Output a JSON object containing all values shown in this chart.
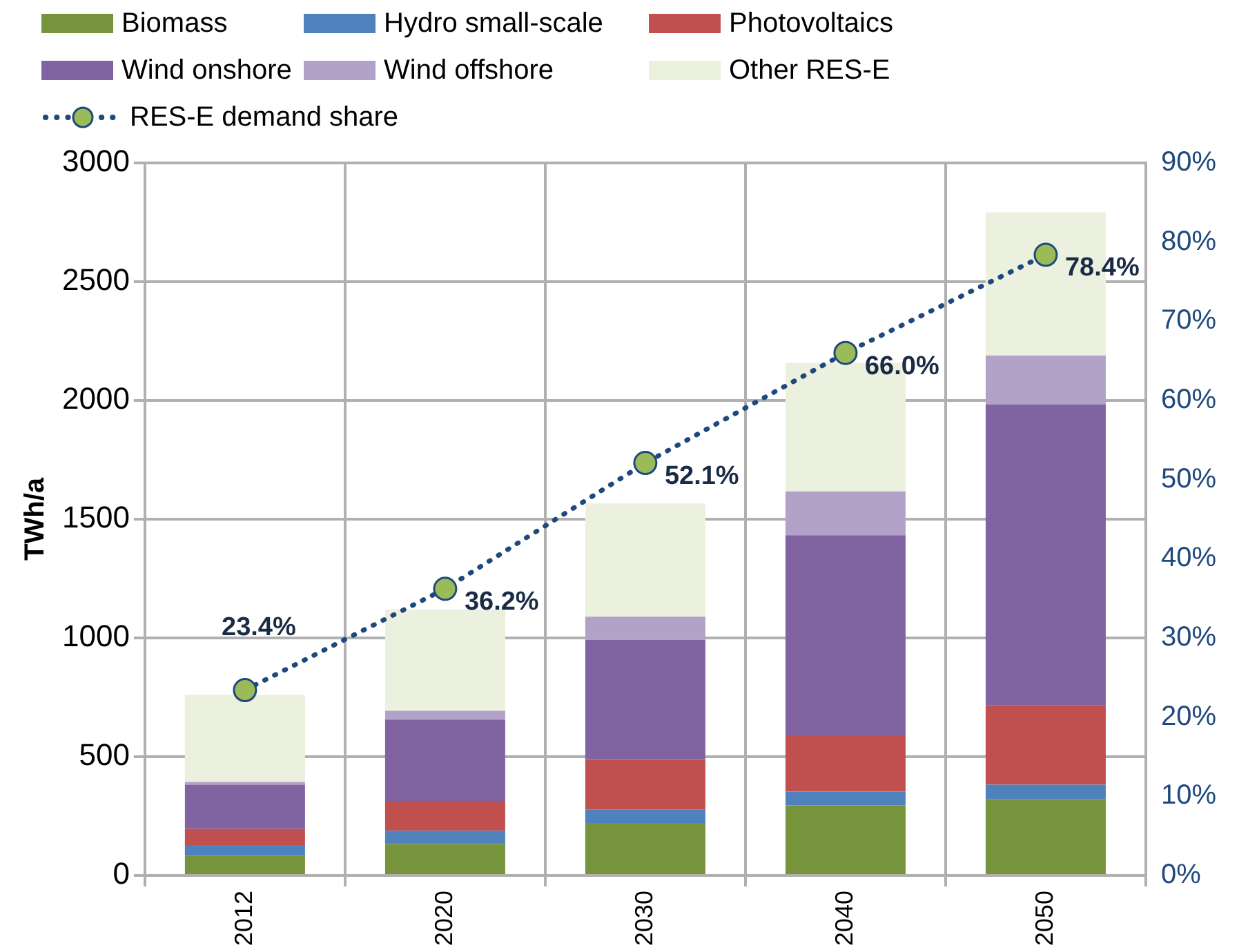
{
  "chart_data": {
    "type": "bar",
    "stacked": true,
    "categories": [
      "2012",
      "2020",
      "2030",
      "2040",
      "2050"
    ],
    "ylabel": "TWh/a",
    "ylim": [
      0,
      3000
    ],
    "yticks": [
      0,
      500,
      1000,
      1500,
      2000,
      2500,
      3000
    ],
    "y2lim": [
      0,
      90
    ],
    "y2ticks": [
      {
        "value": 0,
        "label": "0%"
      },
      {
        "value": 10,
        "label": "10%"
      },
      {
        "value": 20,
        "label": "20%"
      },
      {
        "value": 30,
        "label": "30%"
      },
      {
        "value": 40,
        "label": "40%"
      },
      {
        "value": 50,
        "label": "50%"
      },
      {
        "value": 60,
        "label": "60%"
      },
      {
        "value": 70,
        "label": "70%"
      },
      {
        "value": 80,
        "label": "80%"
      },
      {
        "value": 90,
        "label": "90%"
      }
    ],
    "grid": true,
    "legend": "top",
    "series": [
      {
        "name": "Biomass",
        "color": "#77933c",
        "values": [
          83,
          132,
          221,
          295,
          320
        ]
      },
      {
        "name": "Hydro small-scale",
        "color": "#4f81bd",
        "values": [
          45,
          56,
          56,
          58,
          62
        ]
      },
      {
        "name": "Photovoltaics",
        "color": "#c0504d",
        "values": [
          68,
          126,
          210,
          237,
          334
        ]
      },
      {
        "name": "Wind onshore",
        "color": "#8064a2",
        "values": [
          186,
          342,
          505,
          842,
          1267
        ]
      },
      {
        "name": "Wind offshore",
        "color": "#b3a2c7",
        "values": [
          12,
          37,
          97,
          185,
          206
        ]
      },
      {
        "name": "Other RES-E",
        "color": "#ebf1de",
        "values": [
          367,
          427,
          477,
          541,
          603
        ]
      },
      {
        "name": "RES-E demand share",
        "type": "line",
        "axis": "y2",
        "color": "#1f497d",
        "marker": "circle",
        "line_style": "dotted",
        "values": [
          23.4,
          36.2,
          52.1,
          66.0,
          78.4
        ],
        "value_labels": [
          "23.4%",
          "36.2%",
          "52.1%",
          "66.0%",
          "78.4%"
        ]
      }
    ]
  }
}
